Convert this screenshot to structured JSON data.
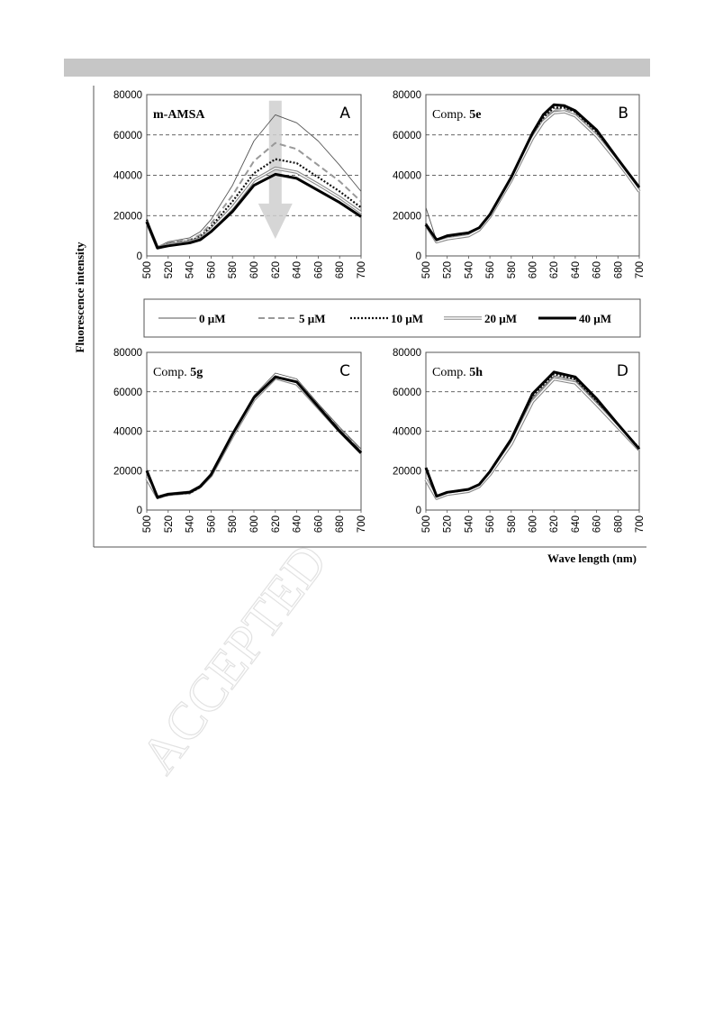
{
  "figure": {
    "y_axis_label": "Fluorescence intensity",
    "x_axis_label": "Wave length (nm)",
    "watermark": "ACCEPTED",
    "legend": [
      "0 µM",
      "5 µM",
      "10 µM",
      "20 µM",
      "40 µM"
    ]
  },
  "chart_data": [
    {
      "type": "line",
      "panel": "A",
      "title_plain": "m-AMSA",
      "title_bold": "",
      "ylim": [
        0,
        80000
      ],
      "yticks": [
        "0",
        "20000",
        "40000",
        "60000",
        "80000"
      ],
      "xticks": [
        "500",
        "520",
        "540",
        "560",
        "580",
        "600",
        "620",
        "640",
        "660",
        "680",
        "700"
      ],
      "grid": "horizontal dashed",
      "annotation": "downward arrow (increasing concentration)",
      "x": [
        500,
        510,
        520,
        540,
        550,
        560,
        580,
        600,
        620,
        640,
        660,
        680,
        700
      ],
      "series": [
        {
          "name": "0 µM",
          "values": [
            17000,
            4500,
            7000,
            9000,
            12000,
            18000,
            35000,
            57000,
            70000,
            66000,
            57000,
            45000,
            32000
          ]
        },
        {
          "name": "5 µM",
          "values": [
            18000,
            4500,
            6500,
            8000,
            10500,
            16000,
            30000,
            47000,
            56000,
            53000,
            45000,
            37000,
            27000
          ]
        },
        {
          "name": "10 µM",
          "values": [
            18000,
            4000,
            6000,
            7500,
            9500,
            14500,
            27000,
            41000,
            48000,
            46000,
            39000,
            32000,
            24000
          ]
        },
        {
          "name": "20 µM",
          "values": [
            17000,
            4000,
            5500,
            7000,
            8500,
            13000,
            24000,
            37500,
            43500,
            41500,
            35500,
            29000,
            21500
          ]
        },
        {
          "name": "40 µM",
          "values": [
            17000,
            4000,
            5000,
            6500,
            8000,
            12000,
            22000,
            35000,
            40500,
            38500,
            32500,
            26500,
            19500
          ]
        }
      ]
    },
    {
      "type": "line",
      "panel": "B",
      "title_plain": "Comp. ",
      "title_bold": "5e",
      "ylim": [
        0,
        80000
      ],
      "yticks": [
        "0",
        "20000",
        "40000",
        "60000",
        "80000"
      ],
      "xticks": [
        "500",
        "520",
        "540",
        "560",
        "580",
        "600",
        "620",
        "640",
        "660",
        "680",
        "700"
      ],
      "grid": "horizontal dashed",
      "x": [
        500,
        510,
        520,
        540,
        550,
        560,
        580,
        600,
        610,
        620,
        630,
        640,
        660,
        680,
        690,
        700
      ],
      "series": [
        {
          "name": "0 µM",
          "values": [
            24000,
            7500,
            9000,
            10500,
            13500,
            20000,
            38000,
            59000,
            67000,
            72000,
            72000,
            70000,
            60000,
            47000,
            40000,
            34000
          ]
        },
        {
          "name": "5 µM",
          "values": [
            16000,
            7500,
            9000,
            10500,
            13500,
            20000,
            38000,
            60000,
            68000,
            73000,
            73000,
            71000,
            61000,
            47000,
            40000,
            33000
          ]
        },
        {
          "name": "10 µM",
          "values": [
            16000,
            8000,
            9500,
            11000,
            14000,
            20500,
            38500,
            60500,
            68500,
            73500,
            73500,
            71500,
            61500,
            47500,
            41000,
            34000
          ]
        },
        {
          "name": "20 µM",
          "values": [
            15500,
            7000,
            8500,
            10000,
            13000,
            19500,
            37500,
            58500,
            66500,
            71000,
            71500,
            69500,
            59500,
            46500,
            39500,
            32000
          ]
        },
        {
          "name": "40 µM",
          "values": [
            15500,
            8000,
            10000,
            11500,
            14000,
            20500,
            39000,
            61000,
            70000,
            75000,
            74500,
            72000,
            62500,
            48000,
            41000,
            34000
          ]
        }
      ]
    },
    {
      "type": "line",
      "panel": "C",
      "title_plain": "Comp. ",
      "title_bold": "5g",
      "ylim": [
        0,
        80000
      ],
      "yticks": [
        "0",
        "20000",
        "40000",
        "60000",
        "80000"
      ],
      "xticks": [
        "500",
        "520",
        "540",
        "560",
        "580",
        "600",
        "620",
        "640",
        "660",
        "680",
        "700"
      ],
      "grid": "horizontal dashed",
      "x": [
        500,
        510,
        520,
        540,
        550,
        560,
        580,
        600,
        620,
        640,
        660,
        680,
        700
      ],
      "series": [
        {
          "name": "0 µM",
          "values": [
            21000,
            6000,
            8000,
            9000,
            12000,
            18000,
            39000,
            58000,
            69500,
            66500,
            54000,
            42000,
            31000
          ]
        },
        {
          "name": "5 µM",
          "values": [
            20500,
            6000,
            7500,
            8500,
            11500,
            17500,
            38500,
            57000,
            68000,
            65000,
            53000,
            41000,
            30000
          ]
        },
        {
          "name": "10 µM",
          "values": [
            20000,
            6000,
            8000,
            8500,
            11500,
            17500,
            38000,
            57000,
            67500,
            64500,
            52500,
            40500,
            29500
          ]
        },
        {
          "name": "20 µM",
          "values": [
            16000,
            6500,
            8000,
            9000,
            12000,
            17500,
            37500,
            56000,
            67000,
            64000,
            52000,
            40000,
            29000
          ]
        },
        {
          "name": "40 µM",
          "values": [
            20000,
            6500,
            8000,
            9000,
            12000,
            18000,
            38500,
            57000,
            67500,
            65000,
            52500,
            40000,
            29000
          ]
        }
      ]
    },
    {
      "type": "line",
      "panel": "D",
      "title_plain": "Comp. ",
      "title_bold": "5h",
      "ylim": [
        0,
        80000
      ],
      "yticks": [
        "0",
        "20000",
        "40000",
        "60000",
        "80000"
      ],
      "xticks": [
        "500",
        "520",
        "540",
        "560",
        "580",
        "600",
        "620",
        "640",
        "660",
        "680",
        "700"
      ],
      "grid": "horizontal dashed",
      "x": [
        500,
        510,
        520,
        540,
        550,
        560,
        580,
        600,
        620,
        640,
        660,
        680,
        700
      ],
      "series": [
        {
          "name": "0 µM",
          "values": [
            21500,
            6500,
            8500,
            10000,
            12500,
            18500,
            35000,
            57000,
            68000,
            66000,
            55000,
            43000,
            31500
          ]
        },
        {
          "name": "5 µM",
          "values": [
            21000,
            6000,
            8000,
            9500,
            12000,
            18000,
            34000,
            56000,
            67000,
            65000,
            54000,
            42000,
            31000
          ]
        },
        {
          "name": "10 µM",
          "values": [
            21000,
            6500,
            8500,
            10000,
            12500,
            19000,
            35500,
            58000,
            69000,
            66500,
            55500,
            43000,
            31500
          ]
        },
        {
          "name": "20 µM",
          "values": [
            15500,
            6000,
            8000,
            9500,
            12000,
            18000,
            33500,
            55000,
            66500,
            64500,
            53500,
            42000,
            30500
          ]
        },
        {
          "name": "40 µM",
          "values": [
            21500,
            7000,
            9000,
            10500,
            13000,
            19500,
            36000,
            59000,
            70000,
            67500,
            56500,
            43500,
            31000
          ]
        }
      ]
    }
  ]
}
